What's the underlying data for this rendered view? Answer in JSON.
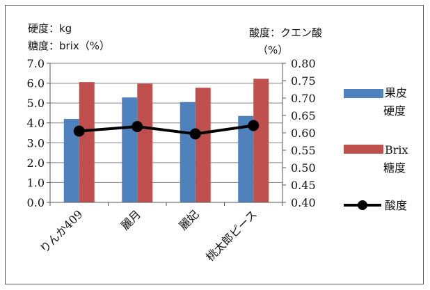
{
  "chart_data": {
    "type": "bar",
    "categories": [
      "りんか409",
      "麗月",
      "麗妃",
      "桃太郎ピース"
    ],
    "left_axis": {
      "label_line1": "硬度：kg",
      "label_line2": "糖度：brix（%）",
      "ticks": [
        "0.0",
        "1.0",
        "2.0",
        "3.0",
        "4.0",
        "5.0",
        "6.0",
        "7.0"
      ],
      "ylim": [
        0,
        7
      ]
    },
    "right_axis": {
      "label_line1": "酸度：クエン酸",
      "label_line2": "（%）",
      "ticks": [
        "0.40",
        "0.45",
        "0.50",
        "0.55",
        "0.60",
        "0.65",
        "0.70",
        "0.75",
        "0.80"
      ],
      "ylim": [
        0.4,
        0.8
      ]
    },
    "series": [
      {
        "key": "hardness",
        "legend_line1": "果皮",
        "legend_line2": "硬度",
        "type": "bar",
        "axis": "left",
        "color": "#4f81bd",
        "values": [
          4.2,
          5.28,
          5.05,
          4.35
        ]
      },
      {
        "key": "brix",
        "legend_line1": "Brix",
        "legend_line2": "糖度",
        "type": "bar",
        "axis": "left",
        "color": "#c0504d",
        "values": [
          6.05,
          5.97,
          5.77,
          6.22
        ]
      },
      {
        "key": "acidity",
        "legend_line1": "酸度",
        "type": "line",
        "axis": "right",
        "color": "#000000",
        "values": [
          0.605,
          0.618,
          0.597,
          0.621
        ]
      }
    ],
    "grid": true,
    "legend_position": "right"
  }
}
